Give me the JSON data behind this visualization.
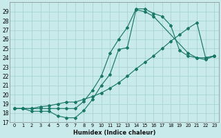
{
  "xlabel": "Humidex (Indice chaleur)",
  "bg_color": "#c8eaea",
  "grid_color": "#a8d4d4",
  "line_color": "#1a7868",
  "xlim": [
    -0.5,
    23.5
  ],
  "ylim": [
    17,
    30
  ],
  "yticks": [
    17,
    18,
    19,
    20,
    21,
    22,
    23,
    24,
    25,
    26,
    27,
    28,
    29
  ],
  "xticks": [
    0,
    1,
    2,
    3,
    4,
    5,
    6,
    7,
    8,
    9,
    10,
    11,
    12,
    13,
    14,
    15,
    16,
    17,
    18,
    19,
    20,
    21,
    22,
    23
  ],
  "line1_x": [
    0,
    1,
    2,
    3,
    4,
    5,
    6,
    7,
    8,
    9,
    10,
    11,
    12,
    13,
    14,
    15,
    16,
    20,
    21,
    22,
    23
  ],
  "line1_y": [
    18.5,
    18.5,
    18.2,
    18.2,
    18.2,
    17.7,
    17.5,
    17.5,
    18.3,
    19.5,
    21.0,
    22.2,
    24.9,
    25.1,
    29.2,
    29.0,
    28.5,
    24.5,
    24.0,
    23.8,
    24.2
  ],
  "line2_x": [
    0,
    1,
    2,
    3,
    4,
    5,
    6,
    7,
    8,
    9,
    10,
    11,
    12,
    13,
    14,
    15,
    16,
    17,
    18,
    19,
    20,
    21,
    22,
    23
  ],
  "line2_y": [
    18.5,
    18.5,
    18.5,
    18.5,
    18.5,
    18.5,
    18.5,
    18.5,
    19.3,
    20.5,
    22.0,
    24.5,
    26.0,
    27.3,
    29.3,
    29.3,
    28.8,
    28.5,
    27.5,
    24.8,
    24.2,
    24.0,
    24.0,
    24.2
  ],
  "line3_x": [
    0,
    1,
    2,
    3,
    4,
    5,
    6,
    7,
    8,
    9,
    10,
    11,
    12,
    13,
    14,
    15,
    16,
    17,
    18,
    19,
    20,
    21,
    22,
    23
  ],
  "line3_y": [
    18.5,
    18.5,
    18.5,
    18.7,
    18.8,
    19.0,
    19.2,
    19.2,
    19.5,
    19.8,
    20.2,
    20.7,
    21.3,
    22.0,
    22.8,
    23.5,
    24.2,
    25.0,
    25.8,
    26.5,
    27.2,
    27.8,
    24.0,
    24.2
  ]
}
